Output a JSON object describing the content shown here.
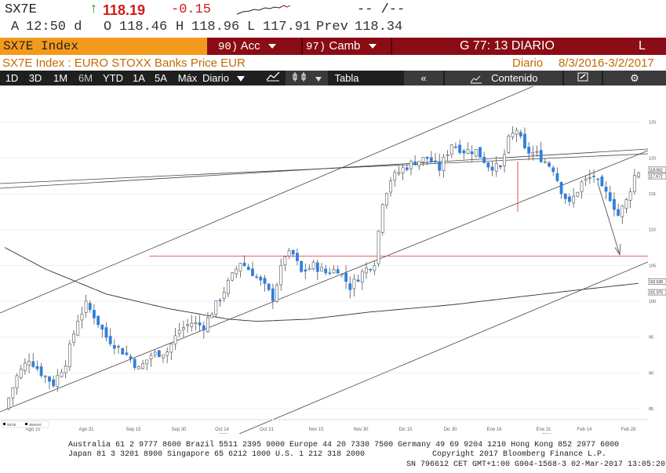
{
  "header": {
    "ticker": "SX7E",
    "last": "118.19",
    "change": "-0.15",
    "dashes": "-- /--",
    "row2": {
      "a_label": "A",
      "time": "12:50 d",
      "o_label": "O",
      "open": "118.46",
      "h_label": "H",
      "high": "118.96",
      "l_label": "L",
      "low": "117.91",
      "prev_label": "Prev",
      "prev": "118.34"
    }
  },
  "menubar": {
    "ticker_box": "SX7E Index",
    "actions_num": "90)",
    "actions_label": "Acc",
    "change_num": "97)",
    "change_label": "Camb",
    "graph_title": "G 77: 13 DIARIO",
    "right_label": "L"
  },
  "info_row": {
    "description": "SX7E Index : EURO STOXX Banks Price EUR",
    "periodicity": "Diario",
    "date_range": "8/3/2016-3/2/2017"
  },
  "toolbar": {
    "ranges": [
      "1D",
      "3D",
      "1M",
      "6M",
      "YTD",
      "1A",
      "5A",
      "Máx"
    ],
    "selected_range": "6M",
    "period_select": "Diario",
    "table_label": "Tabla",
    "content_label": "Contenido"
  },
  "footer": {
    "line1": "Australia 61 2 9777 8600 Brazil 5511 2395 9000 Europe 44 20 7330 7500 Germany 49 69 9204 1210 Hong Kong 852 2977 6000",
    "line2_left": "Japan 81 3 3201 8900        Singapore 65 6212 1000        U.S. 1 212 318 2000",
    "line2_right": "Copyright 2017 Bloomberg Finance L.P.",
    "line3": "SN 796612 CET  GMT+1:00 G904-1568-3 02-Mar-2017 13:05:20"
  },
  "chart_data": {
    "type": "candlestick",
    "yticks": [
      85,
      90,
      95,
      100,
      105,
      110,
      115,
      120,
      125
    ],
    "ylim": [
      81.5,
      130
    ],
    "xtick_labels": [
      "Ago 15",
      "Ago 31",
      "Sep 15",
      "Sep 30",
      "Oct 14",
      "2016",
      "Oct 31",
      "Nov 15",
      "Nov 30",
      "Dic 15",
      "Dic 30",
      "Ene 16",
      "Ene 31",
      "2017",
      "Feb 14",
      "Feb 28"
    ],
    "legend": [
      "SX7E",
      "SMAVG"
    ],
    "price_labels": [
      "118.062",
      "117.672",
      "102.528",
      "101.075"
    ],
    "horizontal_level": 106.3,
    "close_path": [
      [
        0,
        85
      ],
      [
        3,
        89.5
      ],
      [
        6,
        92
      ],
      [
        9,
        90
      ],
      [
        12,
        88.5
      ],
      [
        15,
        91.5
      ],
      [
        18,
        97.5
      ],
      [
        20,
        99.5
      ],
      [
        22,
        98
      ],
      [
        25,
        95
      ],
      [
        28,
        93.5
      ],
      [
        31,
        92
      ],
      [
        33,
        90.5
      ],
      [
        36,
        92.5
      ],
      [
        40,
        93
      ],
      [
        43,
        96
      ],
      [
        46,
        97
      ],
      [
        49,
        96.5
      ],
      [
        52,
        99.5
      ],
      [
        55,
        102.5
      ],
      [
        58,
        105.5
      ],
      [
        61,
        104
      ],
      [
        64,
        102
      ],
      [
        66,
        100.5
      ],
      [
        69,
        106.5
      ],
      [
        71,
        106.5
      ],
      [
        73,
        104
      ],
      [
        76,
        105
      ],
      [
        79,
        104
      ],
      [
        82,
        104.5
      ],
      [
        85,
        102
      ],
      [
        88,
        104
      ],
      [
        91,
        105.5
      ],
      [
        93,
        114
      ],
      [
        95,
        117
      ],
      [
        98,
        118.5
      ],
      [
        101,
        119.5
      ],
      [
        104,
        120
      ],
      [
        107,
        118.5
      ],
      [
        110,
        122
      ],
      [
        113,
        121
      ],
      [
        116,
        121
      ],
      [
        119,
        119
      ],
      [
        122,
        118.5
      ],
      [
        124,
        122.5
      ],
      [
        126,
        124
      ],
      [
        128,
        121
      ],
      [
        131,
        120.5
      ],
      [
        133,
        119.5
      ],
      [
        135,
        118.5
      ],
      [
        137,
        115.5
      ],
      [
        139,
        113.5
      ],
      [
        142,
        116.5
      ],
      [
        145,
        117.5
      ],
      [
        147,
        115.5
      ],
      [
        149,
        114.5
      ],
      [
        151,
        112
      ],
      [
        153,
        114
      ],
      [
        155,
        117.5
      ],
      [
        156,
        118.19
      ]
    ],
    "sma_path": [
      [
        0,
        107.5
      ],
      [
        10,
        104.5
      ],
      [
        25,
        101
      ],
      [
        40,
        99
      ],
      [
        55,
        97.5
      ],
      [
        62,
        97.2
      ],
      [
        75,
        97.5
      ],
      [
        90,
        98.5
      ],
      [
        110,
        99.5
      ],
      [
        125,
        100.5
      ],
      [
        140,
        101.5
      ],
      [
        156,
        102.5
      ]
    ]
  }
}
